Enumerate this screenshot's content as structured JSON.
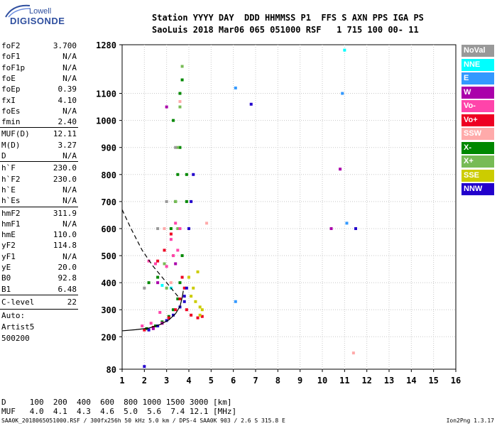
{
  "logo": {
    "line1": "Lowell",
    "line2": "DIGISONDE"
  },
  "header": {
    "line1": "Station YYYY DAY  DDD HHMMSS P1  FFS S AXN PPS IGA PS",
    "line2": "SaoLuis 2018 Mar06 065 051000 RSF   1 715 100 00- 11"
  },
  "params_a": [
    {
      "name": "foF2",
      "value": "3.700"
    },
    {
      "name": "foF1",
      "value": "N/A"
    },
    {
      "name": "foF1p",
      "value": "N/A"
    },
    {
      "name": "foE",
      "value": "N/A"
    },
    {
      "name": "foEp",
      "value": "0.39"
    },
    {
      "name": "fxI",
      "value": "4.10"
    },
    {
      "name": "foEs",
      "value": "N/A"
    },
    {
      "name": "fmin",
      "value": "2.40"
    }
  ],
  "params_b": [
    {
      "name": "MUF(D)",
      "value": "12.11"
    },
    {
      "name": "M(D)",
      "value": "3.27"
    },
    {
      "name": "D",
      "value": "N/A"
    }
  ],
  "params_c": [
    {
      "name": "h`F",
      "value": "230.0"
    },
    {
      "name": "h`F2",
      "value": "230.0"
    },
    {
      "name": "h`E",
      "value": "N/A"
    },
    {
      "name": "h`Es",
      "value": "N/A"
    }
  ],
  "params_d": [
    {
      "name": "hmF2",
      "value": "311.9"
    },
    {
      "name": "hmF1",
      "value": "N/A"
    },
    {
      "name": "hmE",
      "value": "110.0"
    },
    {
      "name": "yF2",
      "value": "114.8"
    },
    {
      "name": "yF1",
      "value": "N/A"
    },
    {
      "name": "yE",
      "value": "20.0"
    },
    {
      "name": "B0",
      "value": "92.8"
    },
    {
      "name": "B1",
      "value": "6.48"
    }
  ],
  "clevel": {
    "name": "C-level",
    "value": "22"
  },
  "extra": {
    "auto": "Auto:",
    "artist": "Artist5",
    "code": "500200"
  },
  "legend": [
    {
      "label": "NoVal",
      "color": "#999999"
    },
    {
      "label": "NNE",
      "color": "#00ffff"
    },
    {
      "label": "E",
      "color": "#3399ff"
    },
    {
      "label": "W",
      "color": "#aa00aa"
    },
    {
      "label": "Vo-",
      "color": "#ff44aa"
    },
    {
      "label": "Vo+",
      "color": "#ee0022"
    },
    {
      "label": "SSW",
      "color": "#ffaaaa"
    },
    {
      "label": "X-",
      "color": "#008800"
    },
    {
      "label": "X+",
      "color": "#77bb55"
    },
    {
      "label": "SSE",
      "color": "#cccc00"
    },
    {
      "label": "NNW",
      "color": "#2200cc"
    }
  ],
  "bottom": {
    "d_line": "D     100  200  400  600  800 1000 1500 3000 [km]",
    "muf_line": "MUF   4.0  4.1  4.3  4.6  5.0  5.6  7.4 12.1 [MHz]"
  },
  "footer": {
    "left": "SAA0K_2018065051000.RSF / 300fx256h 50 kHz 5.0 km / DPS-4 SAA0K 903 / 2.6 S 315.8 E",
    "right": "Ion2Png 1.3.17"
  },
  "chart_data": {
    "type": "scatter",
    "xlim": [
      1,
      16
    ],
    "ylim": [
      80,
      1280
    ],
    "x_ticks": [
      1,
      2,
      3,
      4,
      5,
      6,
      7,
      8,
      9,
      10,
      11,
      12,
      13,
      14,
      15,
      16
    ],
    "y_ticks": [
      80,
      200,
      300,
      400,
      500,
      600,
      700,
      800,
      900,
      1000,
      1100,
      1280
    ],
    "grid": true,
    "series": [
      {
        "name": "X-",
        "color": "#008800",
        "points": [
          [
            2.1,
            230
          ],
          [
            2.5,
            240
          ],
          [
            2.8,
            255
          ],
          [
            3.1,
            275
          ],
          [
            3.3,
            300
          ],
          [
            3.5,
            340
          ],
          [
            3.6,
            400
          ],
          [
            3.7,
            500
          ],
          [
            3.2,
            600
          ],
          [
            3.4,
            700
          ],
          [
            3.5,
            800
          ],
          [
            3.6,
            900
          ],
          [
            3.3,
            1000
          ],
          [
            3.6,
            1100
          ],
          [
            3.7,
            1150
          ],
          [
            3.9,
            800
          ],
          [
            3.9,
            700
          ],
          [
            2.6,
            420
          ],
          [
            2.2,
            400
          ]
        ]
      },
      {
        "name": "X+",
        "color": "#77bb55",
        "points": [
          [
            3.0,
            380
          ],
          [
            3.3,
            500
          ],
          [
            3.4,
            700
          ],
          [
            3.5,
            900
          ],
          [
            3.7,
            1200
          ],
          [
            3.6,
            1050
          ],
          [
            3.5,
            600
          ],
          [
            2.9,
            470
          ]
        ]
      },
      {
        "name": "Vo-",
        "color": "#ff44aa",
        "points": [
          [
            1.9,
            240
          ],
          [
            2.3,
            250
          ],
          [
            2.7,
            290
          ],
          [
            3.0,
            460
          ],
          [
            3.3,
            500
          ],
          [
            3.5,
            520
          ],
          [
            3.2,
            560
          ],
          [
            2.2,
            480
          ],
          [
            2.5,
            470
          ],
          [
            3.4,
            620
          ],
          [
            3.6,
            600
          ]
        ]
      },
      {
        "name": "Vo+",
        "color": "#ee0022",
        "points": [
          [
            2.0,
            225
          ],
          [
            2.4,
            235
          ],
          [
            2.8,
            250
          ],
          [
            3.1,
            270
          ],
          [
            3.4,
            300
          ],
          [
            3.6,
            340
          ],
          [
            3.8,
            380
          ],
          [
            3.9,
            300
          ],
          [
            4.1,
            280
          ],
          [
            4.4,
            270
          ],
          [
            4.6,
            275
          ],
          [
            2.6,
            480
          ],
          [
            2.9,
            520
          ],
          [
            3.2,
            580
          ],
          [
            3.7,
            420
          ]
        ]
      },
      {
        "name": "NNW",
        "color": "#2200cc",
        "points": [
          [
            2.2,
            225
          ],
          [
            2.6,
            240
          ],
          [
            3.0,
            260
          ],
          [
            3.3,
            280
          ],
          [
            3.6,
            310
          ],
          [
            3.8,
            350
          ],
          [
            3.9,
            380
          ],
          [
            4.1,
            700
          ],
          [
            4.2,
            800
          ],
          [
            4.0,
            600
          ],
          [
            6.8,
            1060
          ],
          [
            11.5,
            600
          ],
          [
            2.0,
            90
          ],
          [
            3.8,
            330
          ]
        ]
      },
      {
        "name": "SSE",
        "color": "#cccc00",
        "points": [
          [
            4.1,
            350
          ],
          [
            4.3,
            330
          ],
          [
            4.5,
            310
          ],
          [
            4.6,
            300
          ],
          [
            4.4,
            440
          ],
          [
            4.2,
            380
          ],
          [
            4.0,
            420
          ],
          [
            4.5,
            280
          ]
        ]
      },
      {
        "name": "NNE",
        "color": "#00ffff",
        "points": [
          [
            3.2,
            380
          ],
          [
            2.8,
            390
          ],
          [
            11.0,
            1260
          ]
        ]
      },
      {
        "name": "E",
        "color": "#3399ff",
        "points": [
          [
            6.1,
            1120
          ],
          [
            11.1,
            620
          ],
          [
            6.1,
            330
          ],
          [
            10.9,
            1100
          ]
        ]
      },
      {
        "name": "W",
        "color": "#aa00aa",
        "points": [
          [
            2.4,
            230
          ],
          [
            2.8,
            250
          ],
          [
            3.0,
            1050
          ],
          [
            10.8,
            820
          ],
          [
            10.4,
            600
          ],
          [
            2.6,
            400
          ],
          [
            3.4,
            470
          ]
        ]
      },
      {
        "name": "SSW",
        "color": "#ffaaaa",
        "points": [
          [
            2.9,
            600
          ],
          [
            3.6,
            1070
          ],
          [
            4.8,
            620
          ],
          [
            11.4,
            140
          ],
          [
            3.2,
            400
          ]
        ]
      },
      {
        "name": "NoVal",
        "color": "#999999",
        "points": [
          [
            2.0,
            380
          ],
          [
            2.6,
            600
          ],
          [
            3.0,
            700
          ],
          [
            3.4,
            900
          ]
        ]
      }
    ]
  }
}
